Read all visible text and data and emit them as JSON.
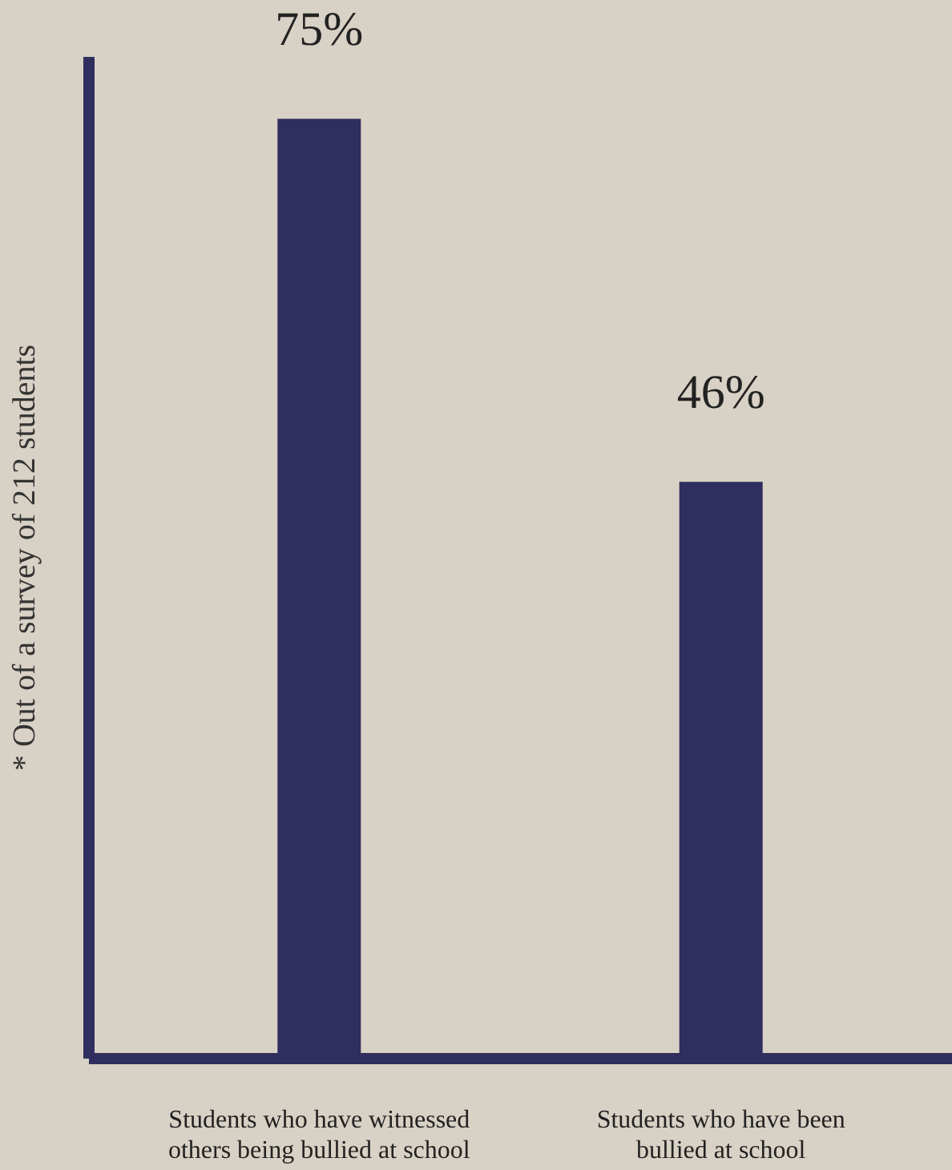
{
  "chart_data": {
    "type": "bar",
    "ylabel": "* Out of a survey of 212 students",
    "categories": [
      "Students who have witnessed\nothers being bullied at school",
      "Students who have been\nbullied at school"
    ],
    "values": [
      75,
      46
    ],
    "value_labels": [
      "75%",
      "46%"
    ],
    "color": "#2f2e5e",
    "grid": false
  }
}
